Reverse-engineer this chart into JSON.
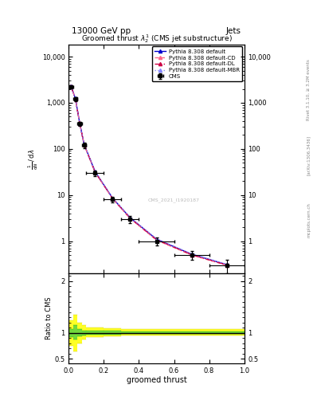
{
  "title": "Groomed thrust $\\lambda_2^1$ (CMS jet substructure)",
  "header_left": "13000 GeV pp",
  "header_right": "Jets",
  "watermark": "CMS_2021_I1920187",
  "rivet_text": "Rivet 3.1.10, ≥ 3.2M events",
  "arxiv_text": "[arXiv:1306.3436]",
  "mcplots_text": "mcplots.cern.ch",
  "xlabel": "groomed thrust",
  "ylabel_ratio": "Ratio to CMS",
  "cms_x": [
    0.012,
    0.037,
    0.062,
    0.087,
    0.15,
    0.25,
    0.35,
    0.5,
    0.7,
    0.9
  ],
  "cms_xerr": [
    0.012,
    0.012,
    0.012,
    0.012,
    0.05,
    0.05,
    0.05,
    0.1,
    0.1,
    0.1
  ],
  "cms_y": [
    2200,
    1200,
    350,
    120,
    30,
    8,
    3,
    1.0,
    0.5,
    0.3
  ],
  "cms_yerr": [
    150,
    100,
    30,
    15,
    4,
    1,
    0.5,
    0.2,
    0.1,
    0.1
  ],
  "pythia_x": [
    0.012,
    0.037,
    0.062,
    0.087,
    0.15,
    0.25,
    0.35,
    0.5,
    0.7,
    0.9
  ],
  "pythia_default_y": [
    2300,
    1250,
    360,
    125,
    32,
    8.5,
    3.2,
    1.1,
    0.52,
    0.31
  ],
  "pythia_cd_y": [
    2280,
    1230,
    355,
    123,
    31,
    8.3,
    3.1,
    1.05,
    0.5,
    0.3
  ],
  "pythia_dl_y": [
    2290,
    1240,
    358,
    124,
    31.5,
    8.4,
    3.15,
    1.08,
    0.51,
    0.305
  ],
  "pythia_mbr_y": [
    2310,
    1260,
    362,
    126,
    32.5,
    8.6,
    3.25,
    1.12,
    0.53,
    0.315
  ],
  "color_default": "#0000cc",
  "color_cd": "#ff6688",
  "color_dl": "#cc0044",
  "color_mbr": "#8888ff",
  "ratio_bins_x": [
    0.0,
    0.024,
    0.049,
    0.074,
    0.1,
    0.2,
    0.3,
    1.0
  ],
  "ratio_green_lo": [
    0.92,
    0.88,
    0.94,
    0.96,
    0.97,
    0.97,
    0.98,
    0.99
  ],
  "ratio_green_hi": [
    1.08,
    1.15,
    1.08,
    1.05,
    1.04,
    1.04,
    1.03,
    1.02
  ],
  "ratio_yellow_lo": [
    0.75,
    0.65,
    0.8,
    0.88,
    0.92,
    0.93,
    0.95,
    0.97
  ],
  "ratio_yellow_hi": [
    1.25,
    1.35,
    1.2,
    1.15,
    1.1,
    1.09,
    1.07,
    1.05
  ],
  "ylim_main": [
    0.2,
    18000
  ],
  "ylim_ratio": [
    0.42,
    2.15
  ],
  "xlim": [
    0.0,
    1.0
  ],
  "yticks_main": [
    1,
    10,
    100,
    1000,
    10000
  ],
  "yticks_ratio": [
    0.5,
    1.0,
    2.0
  ]
}
